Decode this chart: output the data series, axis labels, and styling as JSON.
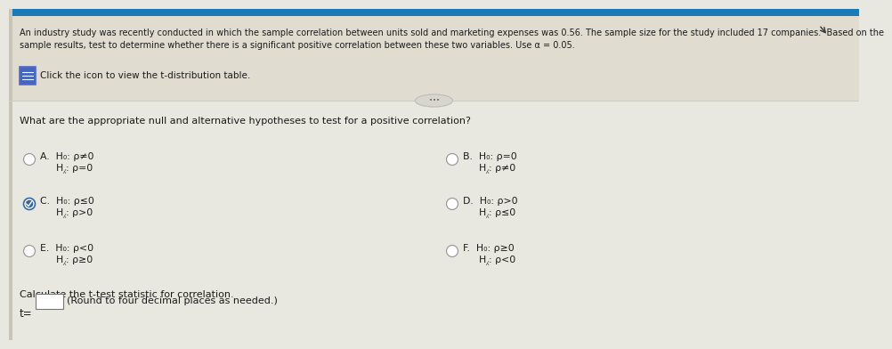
{
  "bg_color": "#e8e8e0",
  "header_bg": "#e0ddd0",
  "body_bg": "#e8e8e0",
  "header_text_line1": "An industry study was recently conducted in which the sample correlation between units sold and marketing expenses was 0.56. The sample size for the study included 17 companies.  Based on the",
  "header_text_line2": "sample results, test to determine whether there is a significant positive correlation between these two variables. Use α = 0.05.",
  "click_text": "Click the icon to view the t-distribution table.",
  "question_text": "What are the appropriate null and alternative hypotheses to test for a positive correlation?",
  "options": [
    {
      "label": "A.",
      "h0": "H₀: ρ≠0",
      "ha": "H⁁: ρ=0",
      "selected": false,
      "col": 0
    },
    {
      "label": "B.",
      "h0": "H₀: ρ=0",
      "ha": "H⁁: ρ≠0",
      "selected": false,
      "col": 1
    },
    {
      "label": "C.",
      "h0": "H₀: ρ≤0",
      "ha": "H⁁: ρ>0",
      "selected": true,
      "col": 0
    },
    {
      "label": "D.",
      "h0": "H₀: ρ>0",
      "ha": "H⁁: ρ≤0",
      "selected": false,
      "col": 1
    },
    {
      "label": "E.",
      "h0": "H₀: ρ<0",
      "ha": "H⁁: ρ≥0",
      "selected": false,
      "col": 0
    },
    {
      "label": "F.",
      "h0": "H₀: ρ≥0",
      "ha": "H⁁: ρ<0",
      "selected": false,
      "col": 1
    }
  ],
  "calc_text": "Calculate the t-test statistic for correlation.",
  "t_label": "t=",
  "round_text": "(Round to four decimal places as needed.)",
  "text_color": "#1a1a1a",
  "radio_color": "#888888",
  "selected_fill": "#3a5a9a",
  "icon_border": "#5566cc",
  "icon_fill": "#4466bb",
  "divider_color": "#cccccc",
  "top_bar_color": "#1a7ab5",
  "left_strip_color": "#c8c4b8",
  "header_line_color": "#c8c4b8"
}
